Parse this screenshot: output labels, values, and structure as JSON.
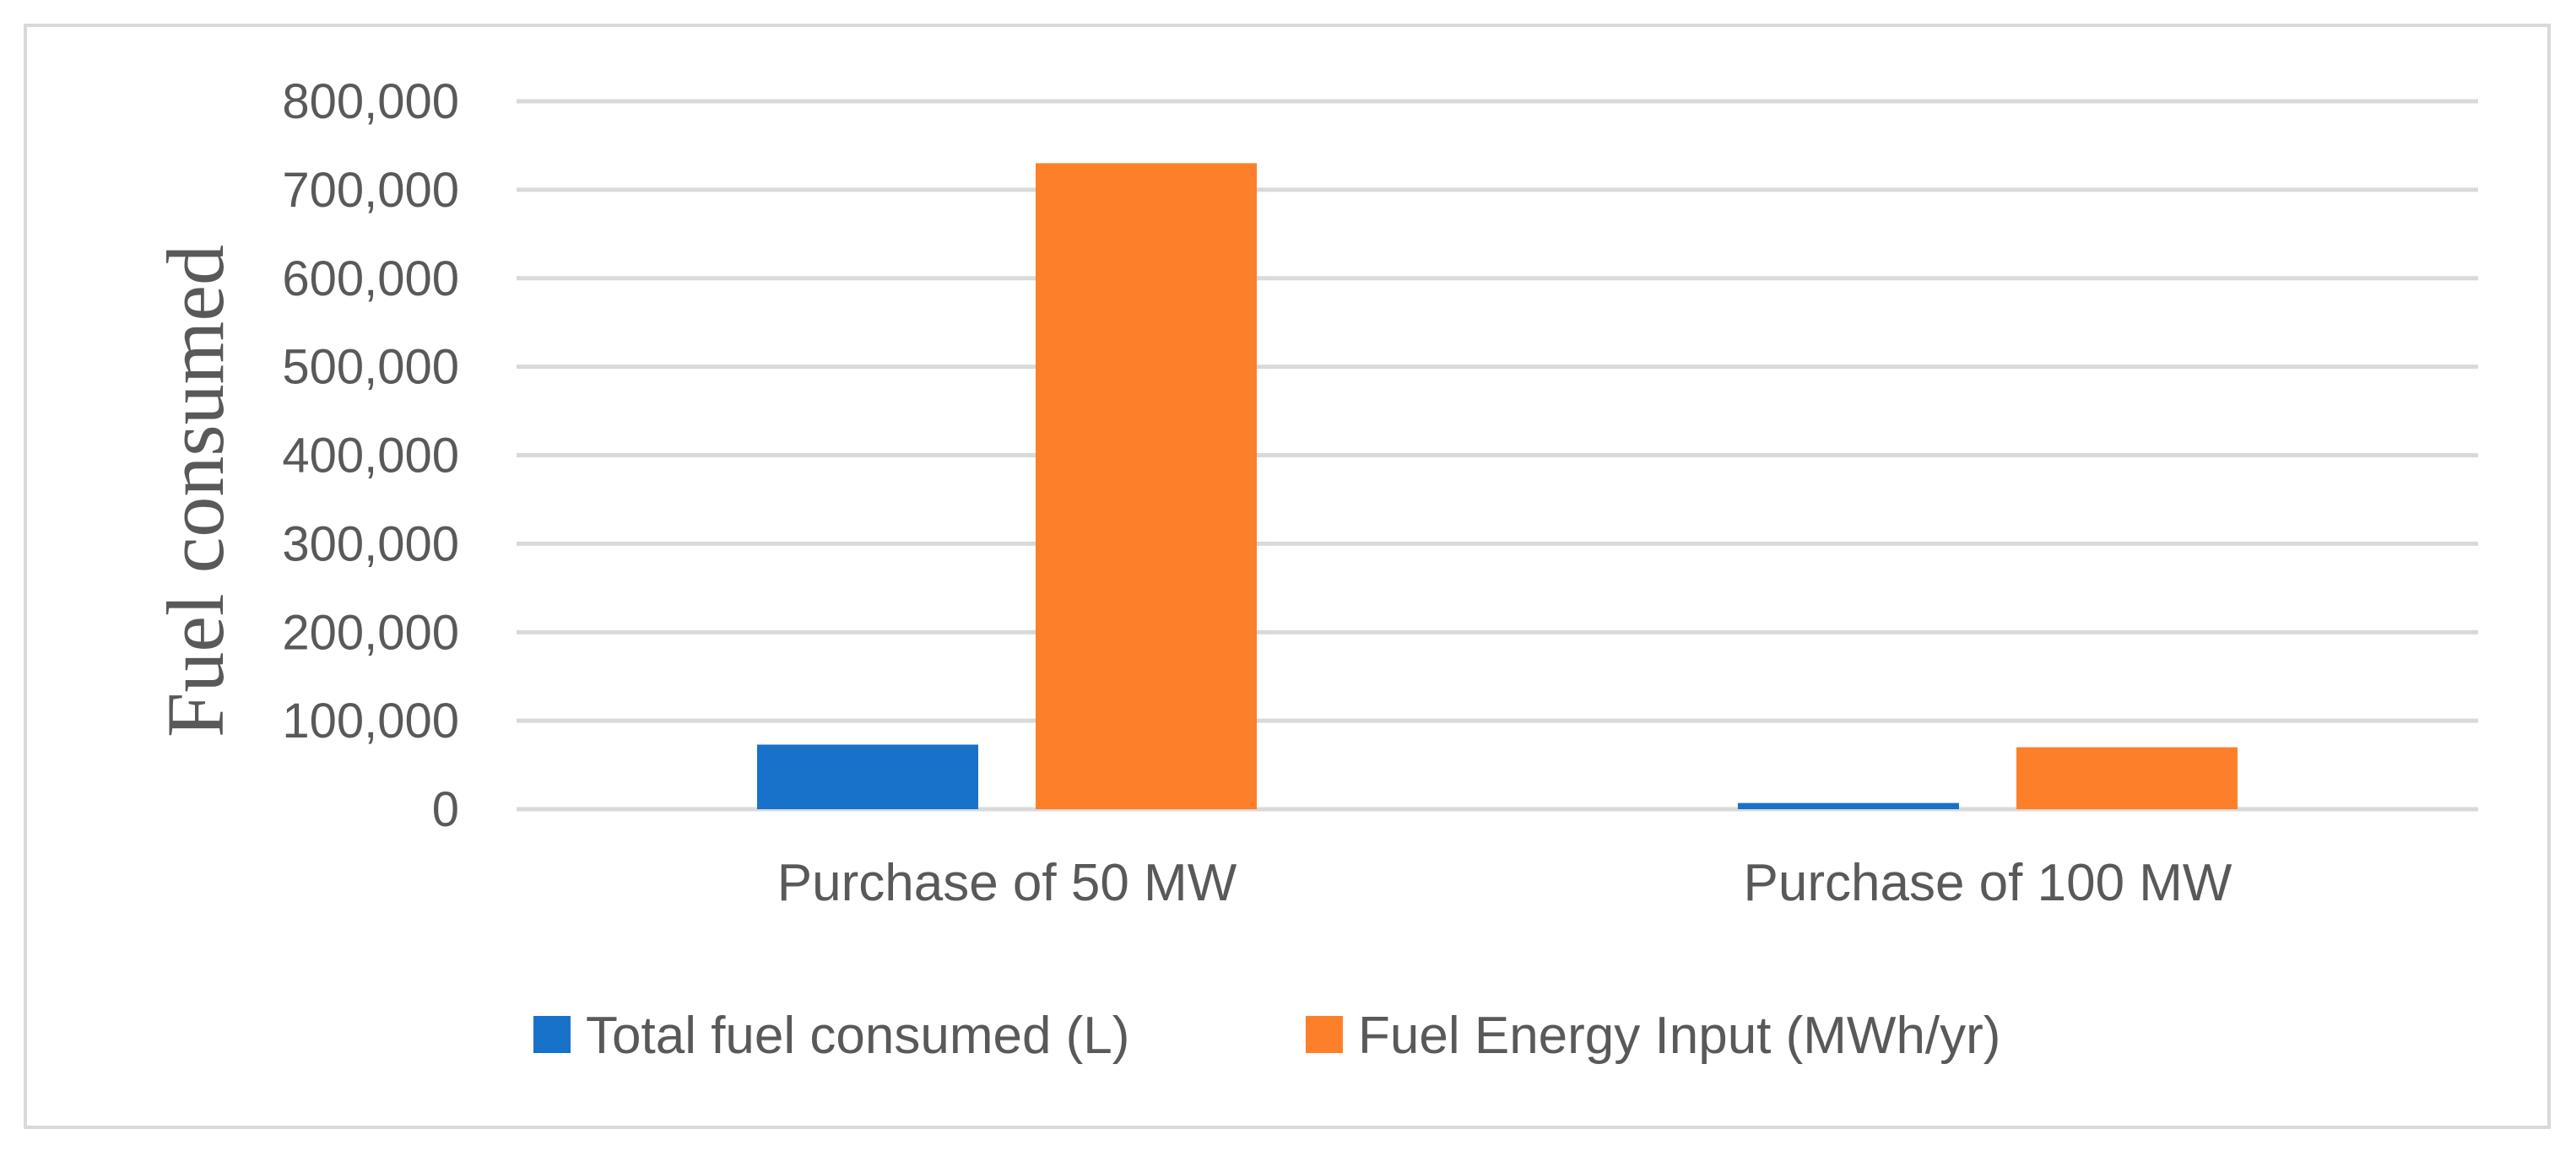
{
  "chart_data": {
    "type": "bar",
    "title": "",
    "xlabel": "",
    "ylabel": "Fuel consumed",
    "categories": [
      "Purchase of 50 MW",
      "Purchase of 100 MW"
    ],
    "series": [
      {
        "name": "Total fuel consumed (L)",
        "color": "#1872c9",
        "values": [
          73000,
          7000
        ]
      },
      {
        "name": "Fuel Energy Input (MWh/yr)",
        "color": "#fe7f2a",
        "values": [
          730000,
          70000
        ]
      }
    ],
    "ylim": [
      0,
      800000
    ],
    "yticks": [
      0,
      100000,
      200000,
      300000,
      400000,
      500000,
      600000,
      700000,
      800000
    ],
    "ytick_labels": [
      "0",
      "100,000",
      "200,000",
      "300,000",
      "400,000",
      "500,000",
      "600,000",
      "700,000",
      "800,000"
    ],
    "grid": true,
    "legend_position": "bottom"
  }
}
